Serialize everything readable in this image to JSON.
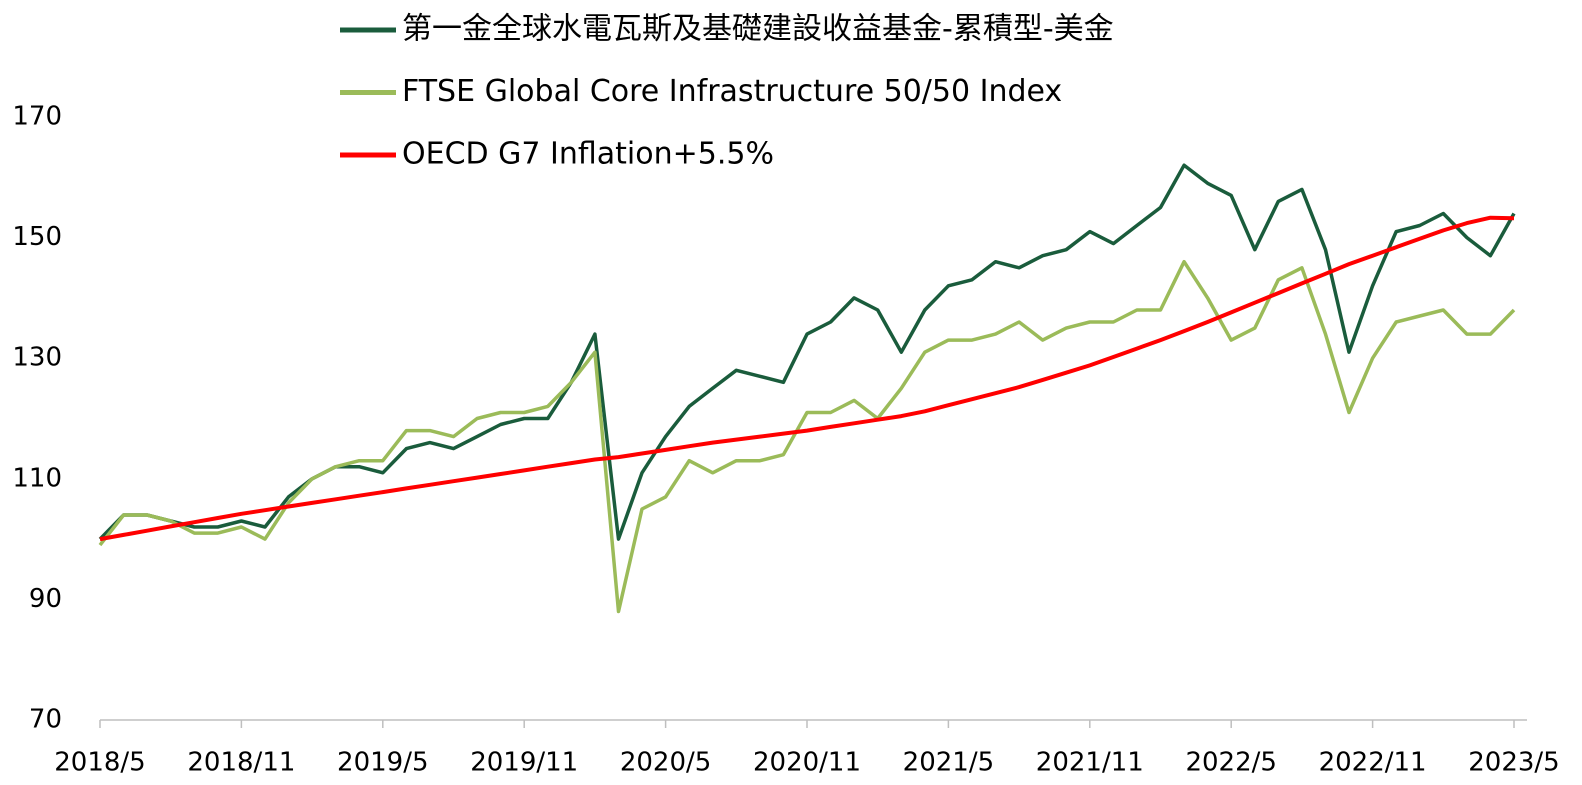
{
  "chart_data": {
    "type": "line",
    "categories": [
      "2018/5",
      null,
      null,
      null,
      null,
      null,
      "2018/11",
      null,
      null,
      null,
      null,
      null,
      "2019/5",
      null,
      null,
      null,
      null,
      null,
      "2019/11",
      null,
      null,
      null,
      null,
      null,
      "2020/5",
      null,
      null,
      null,
      null,
      null,
      "2020/11",
      null,
      null,
      null,
      null,
      null,
      "2021/5",
      null,
      null,
      null,
      null,
      null,
      "2021/11",
      null,
      null,
      null,
      null,
      null,
      "2022/5",
      null,
      null,
      null,
      null,
      null,
      "2022/11",
      null,
      null,
      null,
      null,
      null,
      "2023/5"
    ],
    "series": [
      {
        "name": "第一金全球水電瓦斯及基礎建設收益基金-累積型-美金",
        "color": "#1a5c3c",
        "values": [
          100,
          104,
          104,
          103,
          102,
          102,
          103,
          102,
          107,
          110,
          112,
          112,
          111,
          115,
          116,
          115,
          117,
          119,
          120,
          120,
          126,
          134,
          100,
          111,
          117,
          122,
          125,
          128,
          127,
          126,
          134,
          136,
          140,
          138,
          131,
          138,
          142,
          143,
          146,
          145,
          147,
          148,
          151,
          149,
          152,
          155,
          162,
          159,
          157,
          148,
          156,
          158,
          148,
          131,
          142,
          151,
          152,
          154,
          150,
          147,
          154
        ]
      },
      {
        "name": "FTSE Global Core Infrastructure 50/50 Index",
        "color": "#9bbb59",
        "values": [
          99,
          104,
          104,
          103,
          101,
          101,
          102,
          100,
          106,
          110,
          112,
          113,
          113,
          118,
          118,
          117,
          120,
          121,
          121,
          122,
          126,
          131,
          88,
          105,
          107,
          113,
          111,
          113,
          113,
          114,
          121,
          121,
          123,
          120,
          125,
          131,
          133,
          133,
          134,
          136,
          133,
          135,
          136,
          136,
          138,
          138,
          146,
          140,
          133,
          135,
          143,
          145,
          134,
          121,
          130,
          136,
          137,
          138,
          134,
          134,
          138
        ]
      },
      {
        "name": "OECD G7 Inflation+5.5%",
        "color": "#ff0000",
        "values": [
          100,
          100.7,
          101.4,
          102.1,
          102.8,
          103.5,
          104.2,
          104.8,
          105.4,
          106,
          106.6,
          107.2,
          107.8,
          108.4,
          109,
          109.6,
          110.2,
          110.8,
          111.4,
          112,
          112.6,
          113.2,
          113.6,
          114.2,
          114.8,
          115.4,
          116,
          116.5,
          117,
          117.5,
          118,
          118.6,
          119.2,
          119.8,
          120.4,
          121.2,
          122.2,
          123.2,
          124.2,
          125.2,
          126.4,
          127.6,
          128.8,
          130.2,
          131.6,
          133,
          134.5,
          136,
          137.6,
          139.2,
          140.8,
          142.4,
          144,
          145.6,
          147,
          148.4,
          149.8,
          151.2,
          152.4,
          153.3,
          153.2
        ]
      }
    ],
    "ylim": [
      70,
      170
    ],
    "yticks": [
      70,
      90,
      110,
      130,
      150,
      170
    ],
    "grid": false,
    "legend": "top"
  }
}
